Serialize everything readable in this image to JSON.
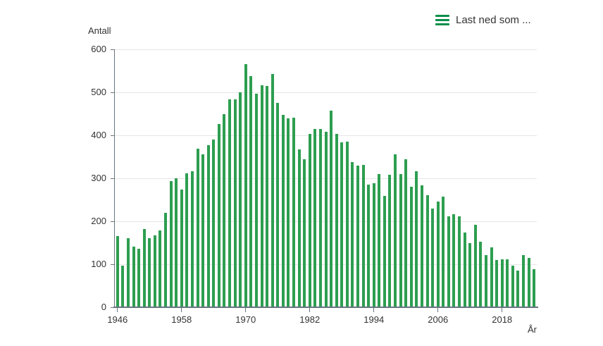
{
  "header": {
    "export_menu_label": "Last ned som ..."
  },
  "colors": {
    "bar": "#2d9e50",
    "menu_icon": "#0a8f4a",
    "gridline": "#e6e6e6",
    "axis": "#66757f",
    "text": "#333333",
    "background": "#ffffff"
  },
  "chart_data": {
    "type": "bar",
    "title": "",
    "ylabel": "Antall",
    "xlabel": "År",
    "ylim": [
      0,
      600
    ],
    "y_ticks": [
      0,
      100,
      200,
      300,
      400,
      500,
      600
    ],
    "x_tick_years": [
      1946,
      1958,
      1970,
      1982,
      1994,
      2006,
      2018
    ],
    "grid": "horizontal",
    "legend": "none",
    "years": [
      1946,
      1947,
      1948,
      1949,
      1950,
      1951,
      1952,
      1953,
      1954,
      1955,
      1956,
      1957,
      1958,
      1959,
      1960,
      1961,
      1962,
      1963,
      1964,
      1965,
      1966,
      1967,
      1968,
      1969,
      1970,
      1971,
      1972,
      1973,
      1974,
      1975,
      1976,
      1977,
      1978,
      1979,
      1980,
      1981,
      1982,
      1983,
      1984,
      1985,
      1986,
      1987,
      1988,
      1989,
      1990,
      1991,
      1992,
      1993,
      1994,
      1995,
      1996,
      1997,
      1998,
      1999,
      2000,
      2001,
      2002,
      2003,
      2004,
      2005,
      2006,
      2007,
      2008,
      2009,
      2010,
      2011,
      2012,
      2013,
      2014,
      2015,
      2016,
      2017,
      2018,
      2019,
      2020,
      2021,
      2022,
      2023,
      2024
    ],
    "values": [
      165,
      97,
      160,
      141,
      136,
      182,
      160,
      167,
      178,
      219,
      293,
      300,
      274,
      311,
      317,
      369,
      355,
      377,
      390,
      426,
      450,
      484,
      484,
      500,
      565,
      538,
      496,
      517,
      515,
      543,
      476,
      447,
      439,
      441,
      368,
      344,
      403,
      414,
      414,
      408,
      457,
      403,
      383,
      386,
      337,
      329,
      331,
      286,
      288,
      310,
      259,
      308,
      355,
      310,
      345,
      280,
      316,
      284,
      261,
      230,
      246,
      258,
      211,
      217,
      212,
      173,
      150,
      191,
      152,
      122,
      139,
      110,
      112,
      112,
      97,
      85,
      121,
      115,
      89
    ]
  }
}
